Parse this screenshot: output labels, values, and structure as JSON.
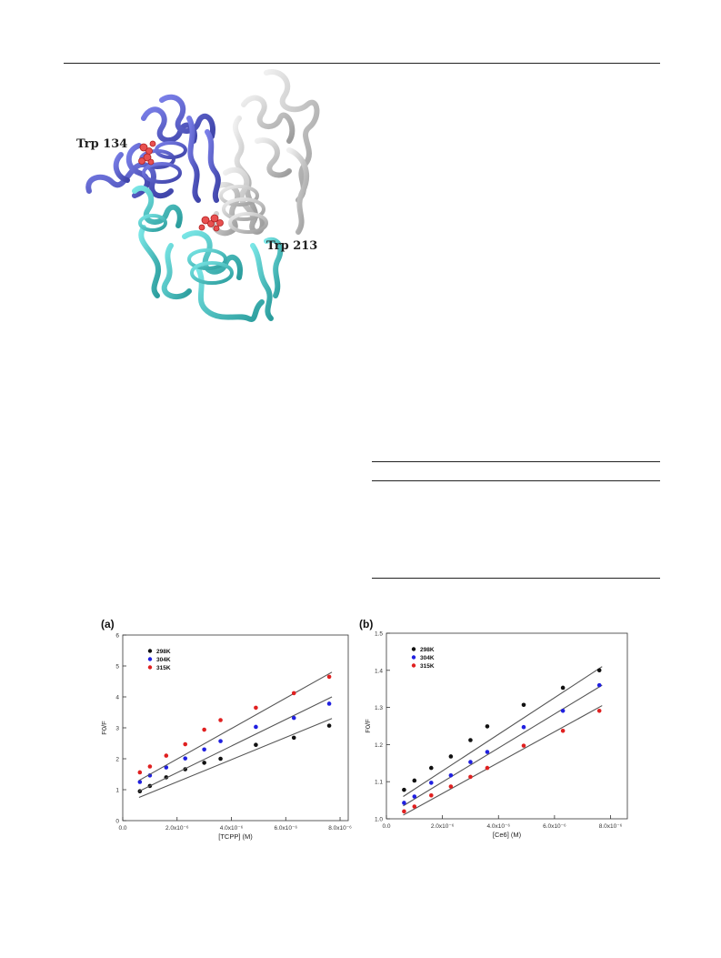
{
  "protein_figure": {
    "labels": {
      "trp134": "Trp 134",
      "trp213": "Trp 213"
    },
    "colors": {
      "domain1": "#5a5fcf",
      "domain2": "#52cccc",
      "domain3": "#c8c8c8",
      "residue": "#e85050"
    }
  },
  "chart_data": [
    {
      "type": "scatter",
      "panel_label": "(a)",
      "xlabel": "[TCPP] (M)",
      "ylabel": "F0/F",
      "xlim": [
        0,
        8.3e-06
      ],
      "ylim": [
        0,
        6
      ],
      "x_ticks": [
        {
          "value": 0,
          "label": "0.0"
        },
        {
          "value": 2e-06,
          "label": "2.0x10⁻⁶"
        },
        {
          "value": 4e-06,
          "label": "4.0x10⁻⁶"
        },
        {
          "value": 6e-06,
          "label": "6.0x10⁻⁶"
        },
        {
          "value": 8e-06,
          "label": "8.0x10⁻⁶"
        }
      ],
      "y_ticks": [
        {
          "value": 0,
          "label": "0"
        },
        {
          "value": 1,
          "label": "1"
        },
        {
          "value": 2,
          "label": "2"
        },
        {
          "value": 3,
          "label": "3"
        },
        {
          "value": 4,
          "label": "4"
        },
        {
          "value": 5,
          "label": "5"
        },
        {
          "value": 6,
          "label": "6"
        }
      ],
      "legend_position": "top-left",
      "series": [
        {
          "name": "298K",
          "color": "#111111",
          "x": [
            6.3e-07,
            1e-06,
            1.6e-06,
            2.3e-06,
            3e-06,
            3.6e-06,
            4.9e-06,
            6.3e-06,
            7.6e-06
          ],
          "y": [
            0.95,
            1.12,
            1.4,
            1.66,
            1.87,
            2.0,
            2.45,
            2.68,
            3.07
          ],
          "fit": [
            0.75,
            3.3
          ]
        },
        {
          "name": "304K",
          "color": "#2020e0",
          "x": [
            6.3e-07,
            1e-06,
            1.6e-06,
            2.3e-06,
            3e-06,
            3.6e-06,
            4.9e-06,
            6.3e-06,
            7.6e-06
          ],
          "y": [
            1.25,
            1.46,
            1.72,
            2.01,
            2.3,
            2.57,
            3.03,
            3.32,
            3.78
          ],
          "fit": [
            0.95,
            4.0
          ]
        },
        {
          "name": "315K",
          "color": "#e02020",
          "x": [
            6.3e-07,
            1e-06,
            1.6e-06,
            2.3e-06,
            3e-06,
            3.6e-06,
            4.9e-06,
            6.3e-06,
            7.6e-06
          ],
          "y": [
            1.56,
            1.75,
            2.1,
            2.47,
            2.94,
            3.25,
            3.65,
            4.12,
            4.65
          ],
          "fit": [
            1.3,
            4.8
          ]
        }
      ]
    },
    {
      "type": "scatter",
      "panel_label": "(b)",
      "xlabel": "[Ce6] (M)",
      "ylabel": "F0/F",
      "xlim": [
        0,
        8.6e-06
      ],
      "ylim": [
        1.0,
        1.5
      ],
      "x_ticks": [
        {
          "value": 0,
          "label": "0.0"
        },
        {
          "value": 2e-06,
          "label": "2.0x10⁻⁶"
        },
        {
          "value": 4e-06,
          "label": "4.0x10⁻⁶"
        },
        {
          "value": 6e-06,
          "label": "6.0x10⁻⁶"
        },
        {
          "value": 8e-06,
          "label": "8.0x10⁻⁶"
        }
      ],
      "y_ticks": [
        {
          "value": 1.0,
          "label": "1.0"
        },
        {
          "value": 1.1,
          "label": "1.1"
        },
        {
          "value": 1.2,
          "label": "1.2"
        },
        {
          "value": 1.3,
          "label": "1.3"
        },
        {
          "value": 1.4,
          "label": "1.4"
        },
        {
          "value": 1.5,
          "label": "1.5"
        }
      ],
      "legend_position": "top-left",
      "series": [
        {
          "name": "298K",
          "color": "#111111",
          "x": [
            6.3e-07,
            1e-06,
            1.6e-06,
            2.3e-06,
            3e-06,
            3.6e-06,
            4.9e-06,
            6.3e-06,
            7.6e-06
          ],
          "y": [
            1.078,
            1.103,
            1.137,
            1.168,
            1.212,
            1.249,
            1.307,
            1.353,
            1.4
          ],
          "fit": [
            1.06,
            1.41
          ]
        },
        {
          "name": "304K",
          "color": "#2020e0",
          "x": [
            6.3e-07,
            1e-06,
            1.6e-06,
            2.3e-06,
            3e-06,
            3.6e-06,
            4.9e-06,
            6.3e-06,
            7.6e-06
          ],
          "y": [
            1.043,
            1.06,
            1.097,
            1.117,
            1.153,
            1.18,
            1.247,
            1.291,
            1.36
          ],
          "fit": [
            1.035,
            1.36
          ]
        },
        {
          "name": "315K",
          "color": "#e02020",
          "x": [
            6.3e-07,
            1e-06,
            1.6e-06,
            2.3e-06,
            3e-06,
            3.6e-06,
            4.9e-06,
            6.3e-06,
            7.6e-06
          ],
          "y": [
            1.02,
            1.033,
            1.063,
            1.087,
            1.113,
            1.137,
            1.197,
            1.237,
            1.291
          ],
          "fit": [
            1.01,
            1.305
          ]
        }
      ]
    }
  ]
}
